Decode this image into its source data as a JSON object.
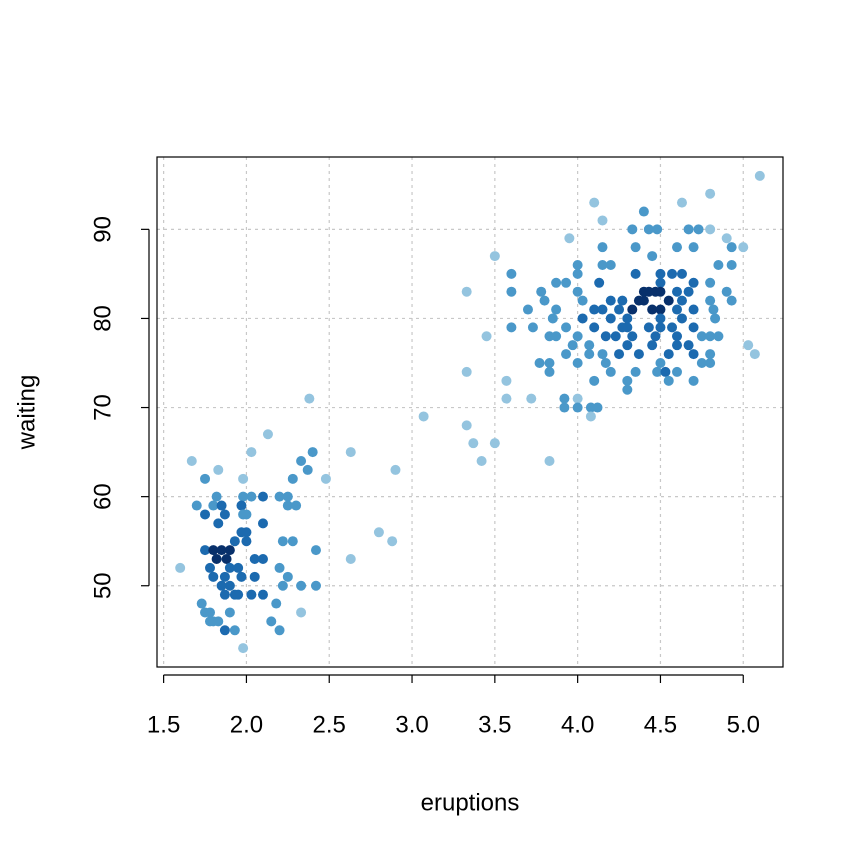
{
  "chart_data": {
    "type": "scatter",
    "x_label": "eruptions",
    "y_label": "waiting",
    "xlim": [
      1.46,
      5.24
    ],
    "ylim": [
      40.88,
      98.12
    ],
    "xticks": [
      1.5,
      {
        "value": 2,
        "label": "2.0"
      },
      2.5,
      {
        "value": 3,
        "label": "3.0"
      },
      3.5,
      {
        "value": 4,
        "label": "4.0"
      },
      4.5,
      {
        "value": 5,
        "label": "5.0"
      }
    ],
    "yticks": [
      50,
      60,
      70,
      80,
      90
    ],
    "grid": true,
    "x": [
      5.1,
      4.8,
      4.1,
      4.63,
      4.4,
      4.15,
      3.95,
      4.33,
      4.43,
      4.48,
      4.67,
      4.73,
      4.8,
      4.9,
      4.93,
      5.0,
      4.35,
      4.15,
      4.6,
      4.7,
      3.5,
      4.45,
      4.0,
      4.15,
      4.2,
      4.85,
      4.93,
      3.6,
      4.0,
      4.35,
      4.5,
      4.57,
      4.63,
      3.87,
      3.93,
      4.13,
      4.5,
      4.7,
      4.8,
      3.33,
      3.6,
      3.78,
      4.0,
      4.4,
      4.43,
      4.47,
      4.5,
      4.6,
      4.67,
      4.9,
      3.8,
      4.03,
      4.2,
      4.27,
      4.37,
      4.4,
      4.55,
      4.63,
      4.8,
      4.93,
      3.7,
      3.87,
      4.1,
      4.15,
      4.25,
      4.33,
      4.45,
      4.5,
      4.6,
      4.7,
      4.82,
      3.85,
      4.03,
      4.2,
      4.3,
      4.5,
      4.63,
      4.83,
      3.6,
      3.73,
      3.93,
      4.1,
      4.27,
      4.3,
      4.43,
      4.5,
      4.57,
      4.7,
      3.83,
      3.87,
      4.0,
      4.17,
      4.23,
      4.33,
      4.47,
      4.6,
      4.75,
      4.8,
      4.85,
      3.45,
      3.97,
      4.07,
      4.3,
      4.45,
      4.6,
      4.67,
      5.03,
      3.93,
      4.07,
      4.15,
      4.25,
      4.37,
      4.55,
      4.7,
      4.8,
      5.07,
      3.77,
      3.83,
      4.0,
      4.17,
      4.5,
      4.75,
      4.8,
      3.33,
      3.83,
      4.2,
      4.35,
      4.48,
      4.53,
      4.6,
      3.57,
      4.1,
      4.3,
      4.55,
      4.7,
      4.3,
      3.57,
      3.72,
      3.92,
      4.0,
      3.92,
      4.0,
      4.08,
      4.12,
      4.08,
      3.07,
      3.33,
      3.37,
      3.5,
      3.42,
      3.83,
      2.38,
      2.13,
      2.63,
      2.03,
      2.4,
      1.67,
      2.33,
      1.83,
      2.37,
      2.9,
      1.75,
      1.98,
      2.28,
      2.48,
      1.82,
      1.98,
      2.03,
      2.1,
      2.2,
      2.25,
      1.7,
      1.8,
      1.85,
      1.97,
      2.25,
      2.3,
      1.75,
      1.87,
      1.98,
      2.0,
      1.83,
      2.1,
      1.97,
      2.0,
      2.8,
      1.93,
      2.0,
      2.22,
      2.28,
      2.88,
      1.75,
      1.8,
      1.85,
      1.9,
      2.42,
      1.82,
      1.88,
      2.05,
      2.1,
      2.63,
      1.6,
      1.78,
      1.9,
      1.95,
      2.2,
      1.8,
      1.87,
      1.97,
      2.05,
      2.25,
      1.85,
      1.9,
      2.22,
      2.33,
      2.42,
      1.87,
      1.93,
      1.95,
      2.03,
      2.1,
      1.73,
      2.18,
      1.75,
      1.78,
      1.9,
      2.33,
      1.78,
      1.8,
      1.83,
      2.15,
      1.87,
      1.93,
      2.2,
      1.98
    ],
    "values": [
      96,
      94,
      93,
      93,
      92,
      91,
      89,
      90,
      90,
      90,
      90,
      90,
      90,
      89,
      88,
      88,
      88,
      88,
      88,
      88,
      87,
      87,
      86,
      86,
      86,
      86,
      86,
      85,
      85,
      85,
      85,
      85,
      85,
      84,
      84,
      84,
      84,
      84,
      84,
      83,
      83,
      83,
      83,
      83,
      83,
      83,
      83,
      83,
      83,
      83,
      82,
      82,
      82,
      82,
      82,
      82,
      82,
      82,
      82,
      82,
      81,
      81,
      81,
      81,
      81,
      81,
      81,
      81,
      81,
      81,
      81,
      80,
      80,
      80,
      80,
      80,
      80,
      80,
      79,
      79,
      79,
      79,
      79,
      79,
      79,
      79,
      79,
      79,
      78,
      78,
      78,
      78,
      78,
      78,
      78,
      78,
      78,
      78,
      78,
      78,
      77,
      77,
      77,
      77,
      77,
      77,
      77,
      76,
      76,
      76,
      76,
      76,
      76,
      76,
      76,
      76,
      75,
      75,
      75,
      75,
      75,
      75,
      75,
      74,
      74,
      74,
      74,
      74,
      74,
      74,
      73,
      73,
      73,
      73,
      73,
      72,
      71,
      71,
      71,
      71,
      70,
      70,
      70,
      70,
      69,
      69,
      68,
      66,
      66,
      64,
      64,
      71,
      67,
      65,
      65,
      65,
      64,
      64,
      63,
      63,
      63,
      62,
      62,
      62,
      62,
      60,
      60,
      60,
      60,
      60,
      60,
      59,
      59,
      59,
      59,
      59,
      59,
      58,
      58,
      58,
      58,
      57,
      57,
      56,
      56,
      56,
      55,
      55,
      55,
      55,
      55,
      54,
      54,
      54,
      54,
      54,
      53,
      53,
      53,
      53,
      53,
      52,
      52,
      52,
      52,
      52,
      51,
      51,
      51,
      51,
      51,
      50,
      50,
      50,
      50,
      50,
      49,
      49,
      49,
      49,
      49,
      48,
      48,
      47,
      47,
      47,
      47,
      46,
      46,
      46,
      46,
      45,
      45,
      45,
      43
    ],
    "colors": [
      "#94c4df",
      "#94c4df",
      "#94c4df",
      "#94c4df",
      "#4a98c9",
      "#94c4df",
      "#94c4df",
      "#4a98c9",
      "#4a98c9",
      "#4a98c9",
      "#4a98c9",
      "#4a98c9",
      "#94c4df",
      "#94c4df",
      "#4a98c9",
      "#94c4df",
      "#4a98c9",
      "#4a98c9",
      "#4a98c9",
      "#4a98c9",
      "#94c4df",
      "#4a98c9",
      "#4a98c9",
      "#4a98c9",
      "#4a98c9",
      "#4a98c9",
      "#4a98c9",
      "#4a98c9",
      "#4a98c9",
      "#1c6aaf",
      "#1c6aaf",
      "#1c6aaf",
      "#1c6aaf",
      "#4a98c9",
      "#4a98c9",
      "#1c6aaf",
      "#1c6aaf",
      "#1c6aaf",
      "#4a98c9",
      "#94c4df",
      "#4a98c9",
      "#4a98c9",
      "#4a98c9",
      "#08306b",
      "#08306b",
      "#08306b",
      "#08306b",
      "#1c6aaf",
      "#1c6aaf",
      "#4a98c9",
      "#4a98c9",
      "#4a98c9",
      "#1c6aaf",
      "#1c6aaf",
      "#08306b",
      "#08306b",
      "#08306b",
      "#1c6aaf",
      "#4a98c9",
      "#4a98c9",
      "#4a98c9",
      "#4a98c9",
      "#1c6aaf",
      "#1c6aaf",
      "#1c6aaf",
      "#08306b",
      "#08306b",
      "#08306b",
      "#1c6aaf",
      "#1c6aaf",
      "#4a98c9",
      "#4a98c9",
      "#1c6aaf",
      "#1c6aaf",
      "#1c6aaf",
      "#1c6aaf",
      "#1c6aaf",
      "#4a98c9",
      "#4a98c9",
      "#4a98c9",
      "#4a98c9",
      "#1c6aaf",
      "#1c6aaf",
      "#1c6aaf",
      "#1c6aaf",
      "#1c6aaf",
      "#1c6aaf",
      "#1c6aaf",
      "#4a98c9",
      "#4a98c9",
      "#4a98c9",
      "#1c6aaf",
      "#1c6aaf",
      "#1c6aaf",
      "#1c6aaf",
      "#1c6aaf",
      "#4a98c9",
      "#4a98c9",
      "#4a98c9",
      "#94c4df",
      "#4a98c9",
      "#4a98c9",
      "#1c6aaf",
      "#1c6aaf",
      "#1c6aaf",
      "#1c6aaf",
      "#94c4df",
      "#4a98c9",
      "#4a98c9",
      "#4a98c9",
      "#1c6aaf",
      "#1c6aaf",
      "#1c6aaf",
      "#1c6aaf",
      "#4a98c9",
      "#94c4df",
      "#4a98c9",
      "#4a98c9",
      "#4a98c9",
      "#4a98c9",
      "#4a98c9",
      "#4a98c9",
      "#4a98c9",
      "#94c4df",
      "#4a98c9",
      "#4a98c9",
      "#4a98c9",
      "#4a98c9",
      "#1c6aaf",
      "#4a98c9",
      "#94c4df",
      "#4a98c9",
      "#4a98c9",
      "#4a98c9",
      "#4a98c9",
      "#4a98c9",
      "#94c4df",
      "#94c4df",
      "#4a98c9",
      "#94c4df",
      "#4a98c9",
      "#4a98c9",
      "#4a98c9",
      "#4a98c9",
      "#94c4df",
      "#94c4df",
      "#94c4df",
      "#94c4df",
      "#94c4df",
      "#94c4df",
      "#94c4df",
      "#94c4df",
      "#94c4df",
      "#94c4df",
      "#94c4df",
      "#4a98c9",
      "#94c4df",
      "#4a98c9",
      "#94c4df",
      "#4a98c9",
      "#94c4df",
      "#4a98c9",
      "#94c4df",
      "#4a98c9",
      "#94c4df",
      "#4a98c9",
      "#4a98c9",
      "#4a98c9",
      "#1c6aaf",
      "#4a98c9",
      "#4a98c9",
      "#4a98c9",
      "#4a98c9",
      "#1c6aaf",
      "#1c6aaf",
      "#4a98c9",
      "#4a98c9",
      "#1c6aaf",
      "#1c6aaf",
      "#4a98c9",
      "#4a98c9",
      "#1c6aaf",
      "#1c6aaf",
      "#1c6aaf",
      "#1c6aaf",
      "#94c4df",
      "#1c6aaf",
      "#1c6aaf",
      "#4a98c9",
      "#4a98c9",
      "#94c4df",
      "#1c6aaf",
      "#08306b",
      "#08306b",
      "#08306b",
      "#4a98c9",
      "#08306b",
      "#08306b",
      "#1c6aaf",
      "#1c6aaf",
      "#94c4df",
      "#94c4df",
      "#1c6aaf",
      "#1c6aaf",
      "#1c6aaf",
      "#4a98c9",
      "#1c6aaf",
      "#1c6aaf",
      "#1c6aaf",
      "#1c6aaf",
      "#4a98c9",
      "#1c6aaf",
      "#1c6aaf",
      "#4a98c9",
      "#4a98c9",
      "#4a98c9",
      "#1c6aaf",
      "#1c6aaf",
      "#1c6aaf",
      "#1c6aaf",
      "#1c6aaf",
      "#4a98c9",
      "#4a98c9",
      "#4a98c9",
      "#4a98c9",
      "#4a98c9",
      "#94c4df",
      "#4a98c9",
      "#4a98c9",
      "#4a98c9",
      "#4a98c9",
      "#1c6aaf",
      "#4a98c9",
      "#4a98c9",
      "#94c4df"
    ]
  }
}
